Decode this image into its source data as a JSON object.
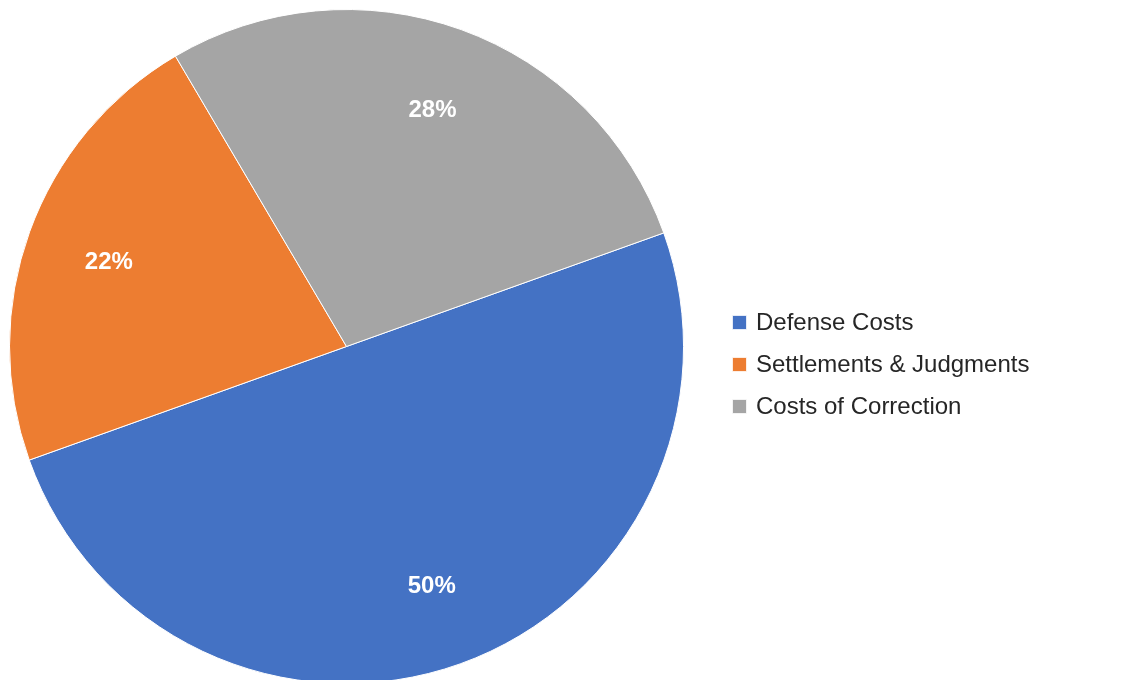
{
  "chart_data": {
    "type": "pie",
    "categories": [
      "Defense Costs",
      "Settlements & Judgments",
      "Costs of Correction"
    ],
    "values": [
      50,
      22,
      28
    ],
    "colors": [
      "#4472c4",
      "#ed7d31",
      "#a5a5a5"
    ],
    "value_labels": [
      "50%",
      "22%",
      "28%"
    ],
    "legend": "right"
  }
}
